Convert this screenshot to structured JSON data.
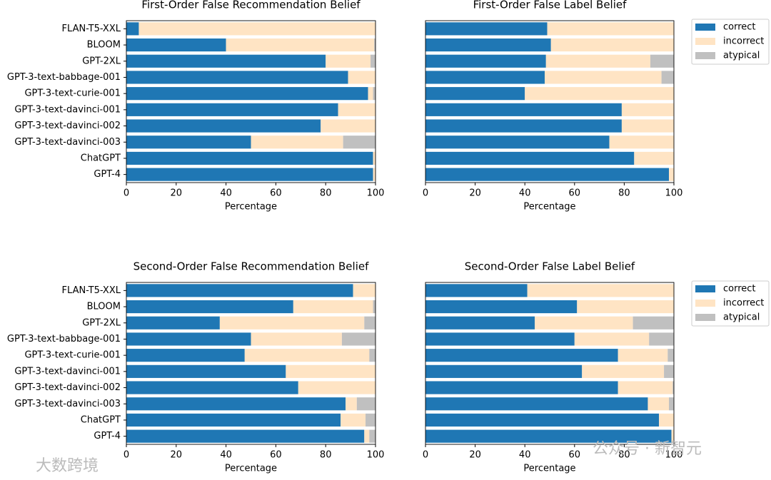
{
  "chart_data": [
    {
      "type": "bar",
      "orientation": "horizontal",
      "stacked": true,
      "title": "First-Order False Recommendation Belief",
      "xlabel": "Percentage",
      "categories": [
        "FLAN-T5-XXL",
        "BLOOM",
        "GPT-2XL",
        "GPT-3-text-babbage-001",
        "GPT-3-text-curie-001",
        "GPT-3-text-davinci-001",
        "GPT-3-text-davinci-002",
        "GPT-3-text-davinci-003",
        "ChatGPT",
        "GPT-4"
      ],
      "series": [
        {
          "name": "correct",
          "color": "#1f77b4",
          "values": [
            5,
            40,
            80,
            89,
            97,
            85,
            78,
            50,
            99,
            99
          ]
        },
        {
          "name": "incorrect",
          "color": "#ffe4c4",
          "values": [
            95,
            59.5,
            18,
            11,
            2,
            15,
            22,
            37,
            1,
            1
          ]
        },
        {
          "name": "atypical",
          "color": "#c0c0c0",
          "values": [
            0,
            0.5,
            2,
            0,
            1,
            0,
            0,
            13,
            0,
            0
          ]
        }
      ],
      "xlim": [
        0,
        100
      ],
      "xticks": [
        0,
        20,
        40,
        60,
        80,
        100
      ],
      "legend": false
    },
    {
      "type": "bar",
      "orientation": "horizontal",
      "stacked": true,
      "title": "First-Order False Label Belief",
      "xlabel": "Percentage",
      "series": [
        {
          "name": "correct",
          "color": "#1f77b4",
          "values": [
            49,
            50.5,
            48.5,
            48,
            40,
            79,
            79,
            74,
            84,
            98
          ]
        },
        {
          "name": "incorrect",
          "color": "#ffe4c4",
          "values": [
            51,
            49.5,
            42,
            47,
            60,
            21,
            21,
            26,
            16,
            2
          ]
        },
        {
          "name": "atypical",
          "color": "#c0c0c0",
          "values": [
            0,
            0,
            9.5,
            5,
            0,
            0,
            0,
            0,
            0,
            0
          ]
        }
      ],
      "xlim": [
        0,
        100
      ],
      "xticks": [
        0,
        20,
        40,
        60,
        80,
        100
      ],
      "legend": "upper right outside"
    },
    {
      "type": "bar",
      "orientation": "horizontal",
      "stacked": true,
      "title": "Second-Order False Recommendation Belief",
      "xlabel": "Percentage",
      "categories": [
        "FLAN-T5-XXL",
        "BLOOM",
        "GPT-2XL",
        "GPT-3-text-babbage-001",
        "GPT-3-text-curie-001",
        "GPT-3-text-davinci-001",
        "GPT-3-text-davinci-002",
        "GPT-3-text-davinci-003",
        "ChatGPT",
        "GPT-4"
      ],
      "series": [
        {
          "name": "correct",
          "color": "#1f77b4",
          "values": [
            91,
            67,
            37.5,
            50,
            47.5,
            64,
            69,
            88,
            86,
            95.5
          ]
        },
        {
          "name": "incorrect",
          "color": "#ffe4c4",
          "values": [
            9,
            32,
            58,
            36.5,
            50,
            36,
            31,
            4.5,
            10,
            2
          ]
        },
        {
          "name": "atypical",
          "color": "#c0c0c0",
          "values": [
            0,
            1,
            4.5,
            13.5,
            2.5,
            0,
            0,
            7.5,
            4,
            2.5
          ]
        }
      ],
      "xlim": [
        0,
        100
      ],
      "xticks": [
        0,
        20,
        40,
        60,
        80,
        100
      ],
      "legend": false
    },
    {
      "type": "bar",
      "orientation": "horizontal",
      "stacked": true,
      "title": "Second-Order False Label Belief",
      "xlabel": "Percentage",
      "series": [
        {
          "name": "correct",
          "color": "#1f77b4",
          "values": [
            41,
            61,
            44,
            60,
            77.5,
            63,
            77.5,
            89.5,
            94,
            99
          ]
        },
        {
          "name": "incorrect",
          "color": "#ffe4c4",
          "values": [
            59,
            39,
            39.5,
            30,
            20,
            33,
            22,
            8.5,
            6,
            1
          ]
        },
        {
          "name": "atypical",
          "color": "#c0c0c0",
          "values": [
            0,
            0,
            16.5,
            10,
            2.5,
            4,
            0.5,
            2,
            0,
            0
          ]
        }
      ],
      "xlim": [
        0,
        100
      ],
      "xticks": [
        0,
        20,
        40,
        60,
        80,
        100
      ],
      "legend": "upper right outside"
    }
  ],
  "watermarks": [
    "大数跨境",
    "公众号 · 新智元"
  ]
}
